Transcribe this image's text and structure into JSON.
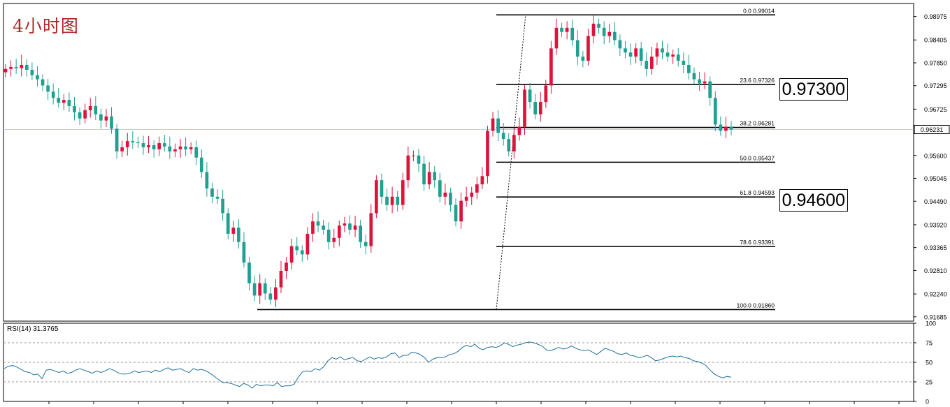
{
  "title": "4小时图",
  "annotations": {
    "upper": "0.97300",
    "lower": "0.94600"
  },
  "rsi_label": "RSI(14) 31.3765",
  "current_price_label": "0.96231",
  "colors": {
    "bull": "#dc143c",
    "bear": "#20a090",
    "rsi_line": "#1f6fa0",
    "title": "#b0282a"
  },
  "chart_data": [
    {
      "type": "candlestick",
      "title": "4小时图",
      "price_axis_ticks": [
        "0.98975",
        "0.98405",
        "0.97850",
        "0.97295",
        "0.96725",
        "0.96231",
        "0.95600",
        "0.95045",
        "0.94490",
        "0.93920",
        "0.93365",
        "0.92810",
        "0.92240",
        "0.91685"
      ],
      "ylim": [
        0.9158,
        0.9929
      ],
      "current_price": 0.96231,
      "fibonacci": [
        {
          "level": "0.0",
          "price": "0.99014"
        },
        {
          "level": "23.6",
          "price": "0.97326"
        },
        {
          "level": "38.2",
          "price": "0.96281"
        },
        {
          "level": "50.0",
          "price": "0.95437"
        },
        {
          "level": "61.8",
          "price": "0.94593"
        },
        {
          "level": "78.6",
          "price": "0.93391"
        },
        {
          "level": "100.0",
          "price": "0.91860"
        }
      ],
      "close": [
        0.977,
        0.9775,
        0.9772,
        0.978,
        0.9768,
        0.9755,
        0.9745,
        0.973,
        0.9715,
        0.97,
        0.9688,
        0.9695,
        0.968,
        0.9665,
        0.965,
        0.967,
        0.968,
        0.966,
        0.9645,
        0.9655,
        0.9625,
        0.957,
        0.958,
        0.9595,
        0.9592,
        0.959,
        0.958,
        0.9585,
        0.9575,
        0.959,
        0.9582,
        0.957,
        0.9575,
        0.9582,
        0.9575,
        0.958,
        0.9555,
        0.952,
        0.948,
        0.946,
        0.9455,
        0.942,
        0.937,
        0.9385,
        0.935,
        0.93,
        0.925,
        0.922,
        0.925,
        0.9225,
        0.921,
        0.924,
        0.928,
        0.93,
        0.934,
        0.933,
        0.932,
        0.937,
        0.94,
        0.939,
        0.938,
        0.935,
        0.936,
        0.939,
        0.9395,
        0.938,
        0.939,
        0.935,
        0.934,
        0.942,
        0.95,
        0.946,
        0.944,
        0.946,
        0.944,
        0.95,
        0.956,
        0.956,
        0.954,
        0.949,
        0.952,
        0.95,
        0.946,
        0.947,
        0.944,
        0.94,
        0.945,
        0.946,
        0.947,
        0.949,
        0.951,
        0.962,
        0.965,
        0.9615,
        0.96,
        0.957,
        0.961,
        0.963,
        0.972,
        0.969,
        0.966,
        0.969,
        0.973,
        0.982,
        0.987,
        0.986,
        0.987,
        0.984,
        0.98,
        0.979,
        0.985,
        0.988,
        0.987,
        0.985,
        0.986,
        0.984,
        0.982,
        0.981,
        0.98,
        0.982,
        0.979,
        0.977,
        0.98,
        0.982,
        0.981,
        0.98,
        0.9805,
        0.979,
        0.978,
        0.976,
        0.9745,
        0.9735,
        0.974,
        0.97,
        0.9635,
        0.962,
        0.963,
        0.9623
      ]
    },
    {
      "type": "line",
      "title": "RSI(14) 31.3765",
      "ylim": [
        0,
        100
      ],
      "y_ticks": [
        "100",
        "75",
        "50",
        "25",
        "0"
      ],
      "levels": [
        75,
        50,
        25
      ],
      "values": [
        42,
        45,
        46,
        44,
        41,
        38,
        37,
        34,
        35,
        29,
        40,
        41,
        39,
        37,
        39,
        36,
        37,
        40,
        42,
        40,
        38,
        36,
        39,
        37,
        39,
        42,
        40,
        37,
        35,
        35,
        36,
        39,
        37,
        38,
        39,
        37,
        40,
        38,
        41,
        43,
        40,
        41,
        42,
        39,
        37,
        42,
        40,
        41,
        39,
        36,
        32,
        28,
        24,
        24,
        23,
        21,
        19,
        23,
        21,
        17,
        22,
        20,
        21,
        21,
        20,
        24,
        19,
        20,
        20,
        22,
        31,
        38,
        39,
        38,
        42,
        40,
        44,
        52,
        56,
        54,
        57,
        53,
        55,
        56,
        52,
        51,
        54,
        57,
        54,
        56,
        55,
        57,
        61,
        62,
        56,
        59,
        59,
        63,
        62,
        60,
        56,
        50,
        54,
        56,
        56,
        57,
        60,
        61,
        64,
        69,
        72,
        70,
        73,
        68,
        66,
        69,
        70,
        69,
        71,
        75,
        73,
        70,
        72,
        73,
        75,
        76,
        75,
        73,
        71,
        66,
        65,
        67,
        69,
        67,
        68,
        71,
        68,
        66,
        65,
        66,
        63,
        60,
        64,
        68,
        66,
        64,
        61,
        60,
        62,
        59,
        58,
        56,
        57,
        59,
        56,
        52,
        53,
        55,
        57,
        58,
        57,
        58,
        56,
        55,
        52,
        51,
        49,
        46,
        40,
        35,
        32,
        30,
        32,
        31
      ]
    }
  ]
}
